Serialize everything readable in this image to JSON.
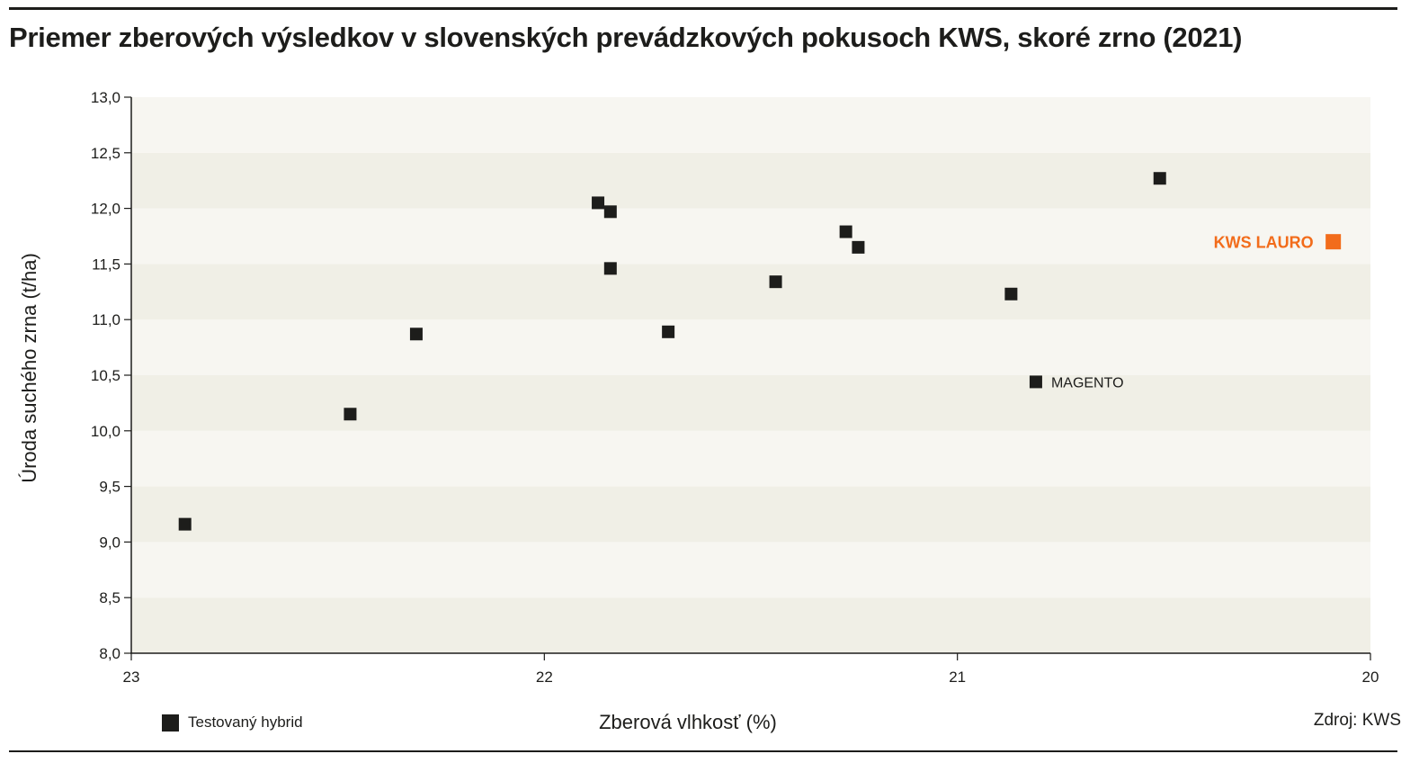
{
  "chart_data": {
    "type": "scatter",
    "title": "Priemer zberových výsledkov v slovenských prevádzkových pokusoch KWS, skoré zrno (2021)",
    "xlabel": "Zberová vlhkosť (%)",
    "ylabel": "Úroda suchého zrna (t/ha)",
    "xlim": [
      23,
      20
    ],
    "x_reversed": true,
    "ylim": [
      8.0,
      13.0
    ],
    "x_ticks": [
      {
        "value": 23,
        "label": "23"
      },
      {
        "value": 22,
        "label": "22"
      },
      {
        "value": 21,
        "label": "21"
      },
      {
        "value": 20,
        "label": "20"
      }
    ],
    "y_ticks": [
      {
        "value": 8.0,
        "label": "8,0"
      },
      {
        "value": 8.5,
        "label": "8,5"
      },
      {
        "value": 9.0,
        "label": "9,0"
      },
      {
        "value": 9.5,
        "label": "9,5"
      },
      {
        "value": 10.0,
        "label": "10,0"
      },
      {
        "value": 10.5,
        "label": "10,5"
      },
      {
        "value": 11.0,
        "label": "11,0"
      },
      {
        "value": 11.5,
        "label": "11,5"
      },
      {
        "value": 12.0,
        "label": "12,0"
      },
      {
        "value": 12.5,
        "label": "12,5"
      },
      {
        "value": 13.0,
        "label": "13,0"
      }
    ],
    "grid": "alternating horizontal bands",
    "band_colors": [
      "#f0efe6",
      "#f7f6f1"
    ],
    "series": [
      {
        "name": "Testovaný hybrid",
        "color": "#1d1d1b",
        "points": [
          {
            "x": 22.87,
            "y": 9.16,
            "label": ""
          },
          {
            "x": 22.47,
            "y": 10.15,
            "label": ""
          },
          {
            "x": 22.31,
            "y": 10.87,
            "label": ""
          },
          {
            "x": 21.87,
            "y": 12.05,
            "label": ""
          },
          {
            "x": 21.84,
            "y": 11.97,
            "label": ""
          },
          {
            "x": 21.84,
            "y": 11.46,
            "label": ""
          },
          {
            "x": 21.7,
            "y": 10.89,
            "label": ""
          },
          {
            "x": 21.44,
            "y": 11.34,
            "label": ""
          },
          {
            "x": 21.27,
            "y": 11.79,
            "label": ""
          },
          {
            "x": 21.24,
            "y": 11.65,
            "label": ""
          },
          {
            "x": 20.87,
            "y": 11.23,
            "label": ""
          },
          {
            "x": 20.81,
            "y": 10.44,
            "label": "MAGENTO"
          },
          {
            "x": 20.51,
            "y": 12.27,
            "label": ""
          }
        ]
      },
      {
        "name": "",
        "color": "#f26c1b",
        "points": [
          {
            "x": 20.09,
            "y": 11.7,
            "label": "KWS LAURO"
          }
        ]
      }
    ],
    "legend": {
      "placement": "bottom-left",
      "entries": [
        "Testovaný hybrid"
      ]
    },
    "source": "Zdroj: KWS"
  }
}
